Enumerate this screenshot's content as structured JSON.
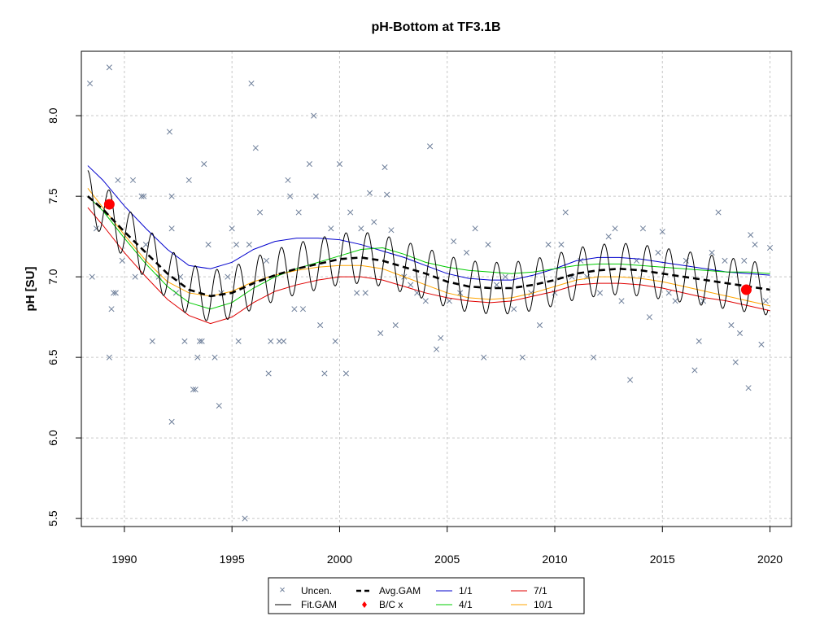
{
  "chart_data": {
    "type": "scatter",
    "title": "pH-Bottom at TF3.1B",
    "xlabel": "",
    "ylabel": "pH [SU]",
    "xlim": [
      1988.0,
      2021.0
    ],
    "ylim": [
      5.45,
      8.4
    ],
    "x_ticks": [
      1990,
      1995,
      2000,
      2005,
      2010,
      2015,
      2020
    ],
    "y_ticks": [
      5.5,
      6.0,
      6.5,
      7.0,
      7.5,
      8.0
    ],
    "x_tick_labels": [
      "1990",
      "1995",
      "2000",
      "2005",
      "2010",
      "2015",
      "2020"
    ],
    "y_tick_labels": [
      "5.5",
      "6.0",
      "6.5",
      "7.0",
      "7.5",
      "8.0"
    ],
    "grid": true,
    "legend_position": "bottom-center",
    "colors": {
      "uncen": "#6e7f9a",
      "fit_gam": "#000000",
      "avg_gam": "#000000",
      "bc": "#ff0000",
      "s1_1": "#0000cd",
      "s4_1": "#00cc00",
      "s7_1": "#e00000",
      "s10_1": "#ffa500",
      "grid": "#c8c8c8"
    },
    "legend": {
      "uncen": "Uncen.",
      "fit_gam": "Fit.GAM",
      "avg_gam": "Avg.GAM",
      "bc": "B/C x",
      "s1_1": "1/1",
      "s4_1": "4/1",
      "s7_1": "7/1",
      "s10_1": "10/1"
    },
    "bc_points": [
      {
        "x": 1989.3,
        "y": 7.45
      },
      {
        "x": 2018.9,
        "y": 6.92
      }
    ],
    "avg_gam": {
      "x": [
        1988.3,
        1989.0,
        1990.0,
        1991.0,
        1992.0,
        1993.0,
        1994.0,
        1995.0,
        1996.0,
        1997.0,
        1998.0,
        1999.0,
        2000.0,
        2001.0,
        2002.0,
        2003.0,
        2004.0,
        2005.0,
        2006.0,
        2007.0,
        2008.0,
        2009.0,
        2010.0,
        2011.0,
        2012.0,
        2013.0,
        2014.0,
        2015.0,
        2016.0,
        2017.0,
        2018.0,
        2019.0,
        2020.0
      ],
      "y": [
        7.5,
        7.42,
        7.28,
        7.15,
        7.02,
        6.92,
        6.88,
        6.9,
        6.96,
        7.01,
        7.05,
        7.08,
        7.11,
        7.12,
        7.1,
        7.06,
        7.02,
        6.97,
        6.94,
        6.93,
        6.93,
        6.95,
        6.98,
        7.02,
        7.04,
        7.05,
        7.04,
        7.02,
        7.0,
        6.98,
        6.96,
        6.94,
        6.92
      ]
    },
    "series": [
      {
        "name": "1/1",
        "key": "s1_1",
        "x": [
          1988.3,
          1989.0,
          1990.0,
          1991.0,
          1992.0,
          1993.0,
          1994.0,
          1995.0,
          1996.0,
          1997.0,
          1998.0,
          1999.0,
          2000.0,
          2001.0,
          2002.0,
          2003.0,
          2004.0,
          2005.0,
          2006.0,
          2007.0,
          2008.0,
          2009.0,
          2010.0,
          2011.0,
          2012.0,
          2013.0,
          2014.0,
          2015.0,
          2016.0,
          2017.0,
          2018.0,
          2019.0,
          2020.0
        ],
        "y": [
          7.69,
          7.6,
          7.44,
          7.3,
          7.17,
          7.07,
          7.05,
          7.09,
          7.17,
          7.22,
          7.24,
          7.24,
          7.23,
          7.2,
          7.16,
          7.12,
          7.07,
          7.02,
          6.99,
          6.98,
          6.98,
          7.01,
          7.05,
          7.1,
          7.12,
          7.12,
          7.11,
          7.09,
          7.07,
          7.05,
          7.03,
          7.02,
          7.01
        ]
      },
      {
        "name": "4/1",
        "key": "s4_1",
        "x": [
          1988.3,
          1989.0,
          1990.0,
          1991.0,
          1992.0,
          1993.0,
          1994.0,
          1995.0,
          1996.0,
          1997.0,
          1998.0,
          1999.0,
          2000.0,
          2001.0,
          2002.0,
          2003.0,
          2004.0,
          2005.0,
          2006.0,
          2007.0,
          2008.0,
          2009.0,
          2010.0,
          2011.0,
          2012.0,
          2013.0,
          2014.0,
          2015.0,
          2016.0,
          2017.0,
          2018.0,
          2019.0,
          2020.0
        ],
        "y": [
          7.5,
          7.41,
          7.24,
          7.08,
          6.94,
          6.84,
          6.8,
          6.84,
          6.93,
          7.0,
          7.05,
          7.09,
          7.13,
          7.17,
          7.18,
          7.14,
          7.09,
          7.06,
          7.04,
          7.03,
          7.02,
          7.03,
          7.05,
          7.07,
          7.08,
          7.08,
          7.07,
          7.06,
          7.05,
          7.04,
          7.03,
          7.03,
          7.02
        ]
      },
      {
        "name": "7/1",
        "key": "s7_1",
        "x": [
          1988.3,
          1989.0,
          1990.0,
          1991.0,
          1992.0,
          1993.0,
          1994.0,
          1995.0,
          1996.0,
          1997.0,
          1998.0,
          1999.0,
          2000.0,
          2001.0,
          2002.0,
          2003.0,
          2004.0,
          2005.0,
          2006.0,
          2007.0,
          2008.0,
          2009.0,
          2010.0,
          2011.0,
          2012.0,
          2013.0,
          2014.0,
          2015.0,
          2016.0,
          2017.0,
          2018.0,
          2019.0,
          2020.0
        ],
        "y": [
          7.43,
          7.32,
          7.15,
          7.0,
          6.86,
          6.76,
          6.71,
          6.75,
          6.84,
          6.91,
          6.95,
          6.98,
          7.0,
          7.0,
          6.98,
          6.94,
          6.9,
          6.87,
          6.85,
          6.84,
          6.85,
          6.88,
          6.91,
          6.95,
          6.96,
          6.96,
          6.95,
          6.93,
          6.9,
          6.87,
          6.85,
          6.82,
          6.79
        ]
      },
      {
        "name": "10/1",
        "key": "s10_1",
        "x": [
          1988.3,
          1989.0,
          1990.0,
          1991.0,
          1992.0,
          1993.0,
          1994.0,
          1995.0,
          1996.0,
          1997.0,
          1998.0,
          1999.0,
          2000.0,
          2001.0,
          2002.0,
          2003.0,
          2004.0,
          2005.0,
          2006.0,
          2007.0,
          2008.0,
          2009.0,
          2010.0,
          2011.0,
          2012.0,
          2013.0,
          2014.0,
          2015.0,
          2016.0,
          2017.0,
          2018.0,
          2019.0,
          2020.0
        ],
        "y": [
          7.55,
          7.43,
          7.26,
          7.1,
          6.97,
          6.9,
          6.88,
          6.91,
          6.97,
          7.01,
          7.04,
          7.06,
          7.07,
          7.07,
          7.05,
          7.0,
          6.95,
          6.9,
          6.87,
          6.86,
          6.87,
          6.9,
          6.94,
          6.98,
          7.0,
          7.0,
          6.99,
          6.97,
          6.94,
          6.91,
          6.88,
          6.85,
          6.82
        ]
      }
    ],
    "points": [
      {
        "x": 1988.4,
        "y": 8.2
      },
      {
        "x": 1988.5,
        "y": 7.0
      },
      {
        "x": 1988.7,
        "y": 7.3
      },
      {
        "x": 1989.3,
        "y": 8.3
      },
      {
        "x": 1989.3,
        "y": 6.5
      },
      {
        "x": 1989.4,
        "y": 6.8
      },
      {
        "x": 1989.5,
        "y": 6.9
      },
      {
        "x": 1989.6,
        "y": 6.9
      },
      {
        "x": 1989.7,
        "y": 7.6
      },
      {
        "x": 1989.9,
        "y": 7.1
      },
      {
        "x": 1990.4,
        "y": 7.6
      },
      {
        "x": 1990.5,
        "y": 7.0
      },
      {
        "x": 1990.8,
        "y": 7.5
      },
      {
        "x": 1990.9,
        "y": 7.5
      },
      {
        "x": 1991.0,
        "y": 7.2
      },
      {
        "x": 1991.3,
        "y": 6.6
      },
      {
        "x": 1991.6,
        "y": 7.0
      },
      {
        "x": 1992.1,
        "y": 7.9
      },
      {
        "x": 1992.2,
        "y": 7.5
      },
      {
        "x": 1992.2,
        "y": 6.1
      },
      {
        "x": 1992.2,
        "y": 7.3
      },
      {
        "x": 1992.4,
        "y": 6.9
      },
      {
        "x": 1992.6,
        "y": 7.0
      },
      {
        "x": 1992.8,
        "y": 6.6
      },
      {
        "x": 1993.0,
        "y": 7.6
      },
      {
        "x": 1993.2,
        "y": 6.3
      },
      {
        "x": 1993.3,
        "y": 6.3
      },
      {
        "x": 1993.4,
        "y": 6.5
      },
      {
        "x": 1993.5,
        "y": 6.6
      },
      {
        "x": 1993.6,
        "y": 6.6
      },
      {
        "x": 1993.7,
        "y": 7.7
      },
      {
        "x": 1993.9,
        "y": 7.2
      },
      {
        "x": 1994.2,
        "y": 6.5
      },
      {
        "x": 1994.4,
        "y": 6.2
      },
      {
        "x": 1994.5,
        "y": 6.9
      },
      {
        "x": 1994.8,
        "y": 7.0
      },
      {
        "x": 1995.0,
        "y": 7.3
      },
      {
        "x": 1995.2,
        "y": 7.2
      },
      {
        "x": 1995.3,
        "y": 6.6
      },
      {
        "x": 1995.6,
        "y": 5.5
      },
      {
        "x": 1995.8,
        "y": 7.2
      },
      {
        "x": 1995.9,
        "y": 8.2
      },
      {
        "x": 1996.1,
        "y": 7.8
      },
      {
        "x": 1996.3,
        "y": 7.4
      },
      {
        "x": 1996.6,
        "y": 7.1
      },
      {
        "x": 1996.7,
        "y": 6.4
      },
      {
        "x": 1996.8,
        "y": 6.6
      },
      {
        "x": 1997.2,
        "y": 6.6
      },
      {
        "x": 1997.4,
        "y": 6.6
      },
      {
        "x": 1997.6,
        "y": 7.6
      },
      {
        "x": 1997.7,
        "y": 7.5
      },
      {
        "x": 1997.9,
        "y": 6.8
      },
      {
        "x": 1998.1,
        "y": 7.4
      },
      {
        "x": 1998.3,
        "y": 6.8
      },
      {
        "x": 1998.6,
        "y": 7.7
      },
      {
        "x": 1998.8,
        "y": 8.0
      },
      {
        "x": 1998.9,
        "y": 7.5
      },
      {
        "x": 1999.1,
        "y": 6.7
      },
      {
        "x": 1999.3,
        "y": 6.4
      },
      {
        "x": 1999.6,
        "y": 7.3
      },
      {
        "x": 1999.8,
        "y": 6.6
      },
      {
        "x": 2000.0,
        "y": 7.7
      },
      {
        "x": 2000.3,
        "y": 6.4
      },
      {
        "x": 2000.5,
        "y": 7.4
      },
      {
        "x": 2000.8,
        "y": 6.9
      },
      {
        "x": 2001.0,
        "y": 7.3
      },
      {
        "x": 2001.2,
        "y": 6.9
      },
      {
        "x": 2001.4,
        "y": 7.52
      },
      {
        "x": 2001.6,
        "y": 7.34
      },
      {
        "x": 2001.9,
        "y": 6.65
      },
      {
        "x": 2002.1,
        "y": 7.68
      },
      {
        "x": 2002.2,
        "y": 7.51
      },
      {
        "x": 2002.4,
        "y": 7.29
      },
      {
        "x": 2002.6,
        "y": 6.7
      },
      {
        "x": 2003.0,
        "y": 7.0
      },
      {
        "x": 2003.3,
        "y": 6.95
      },
      {
        "x": 2003.6,
        "y": 6.9
      },
      {
        "x": 2004.0,
        "y": 6.85
      },
      {
        "x": 2004.2,
        "y": 7.81
      },
      {
        "x": 2004.5,
        "y": 6.55
      },
      {
        "x": 2004.7,
        "y": 6.62
      },
      {
        "x": 2005.1,
        "y": 6.85
      },
      {
        "x": 2005.3,
        "y": 7.22
      },
      {
        "x": 2005.6,
        "y": 6.9
      },
      {
        "x": 2005.9,
        "y": 7.15
      },
      {
        "x": 2006.3,
        "y": 7.3
      },
      {
        "x": 2006.7,
        "y": 6.5
      },
      {
        "x": 2006.9,
        "y": 7.2
      },
      {
        "x": 2007.3,
        "y": 6.95
      },
      {
        "x": 2007.7,
        "y": 7.0
      },
      {
        "x": 2008.1,
        "y": 6.8
      },
      {
        "x": 2008.5,
        "y": 6.5
      },
      {
        "x": 2008.9,
        "y": 6.9
      },
      {
        "x": 2009.3,
        "y": 6.7
      },
      {
        "x": 2009.7,
        "y": 7.2
      },
      {
        "x": 2010.0,
        "y": 6.9
      },
      {
        "x": 2010.3,
        "y": 7.2
      },
      {
        "x": 2010.5,
        "y": 7.4
      },
      {
        "x": 2010.8,
        "y": 7.0
      },
      {
        "x": 2011.2,
        "y": 7.1
      },
      {
        "x": 2011.5,
        "y": 7.0
      },
      {
        "x": 2011.8,
        "y": 6.5
      },
      {
        "x": 2012.1,
        "y": 6.9
      },
      {
        "x": 2012.5,
        "y": 7.25
      },
      {
        "x": 2012.8,
        "y": 7.3
      },
      {
        "x": 2013.1,
        "y": 6.85
      },
      {
        "x": 2013.5,
        "y": 6.36
      },
      {
        "x": 2013.8,
        "y": 7.1
      },
      {
        "x": 2014.1,
        "y": 7.3
      },
      {
        "x": 2014.4,
        "y": 6.75
      },
      {
        "x": 2014.8,
        "y": 7.15
      },
      {
        "x": 2015.0,
        "y": 7.28
      },
      {
        "x": 2015.3,
        "y": 6.9
      },
      {
        "x": 2015.6,
        "y": 6.85
      },
      {
        "x": 2016.1,
        "y": 7.1
      },
      {
        "x": 2016.5,
        "y": 6.42
      },
      {
        "x": 2016.7,
        "y": 6.6
      },
      {
        "x": 2016.9,
        "y": 6.85
      },
      {
        "x": 2017.3,
        "y": 7.15
      },
      {
        "x": 2017.6,
        "y": 7.4
      },
      {
        "x": 2017.9,
        "y": 7.1
      },
      {
        "x": 2018.2,
        "y": 6.7
      },
      {
        "x": 2018.4,
        "y": 6.47
      },
      {
        "x": 2018.6,
        "y": 6.65
      },
      {
        "x": 2018.8,
        "y": 7.1
      },
      {
        "x": 2019.0,
        "y": 6.31
      },
      {
        "x": 2019.1,
        "y": 7.26
      },
      {
        "x": 2019.3,
        "y": 7.2
      },
      {
        "x": 2019.6,
        "y": 6.58
      },
      {
        "x": 2019.8,
        "y": 6.85
      },
      {
        "x": 2020.0,
        "y": 7.18
      }
    ],
    "fit_gam": {
      "amplitude": 0.16,
      "period_years": 1.0,
      "phase_years": 0.0,
      "x_start": 1988.3,
      "x_end": 2019.9
    }
  }
}
